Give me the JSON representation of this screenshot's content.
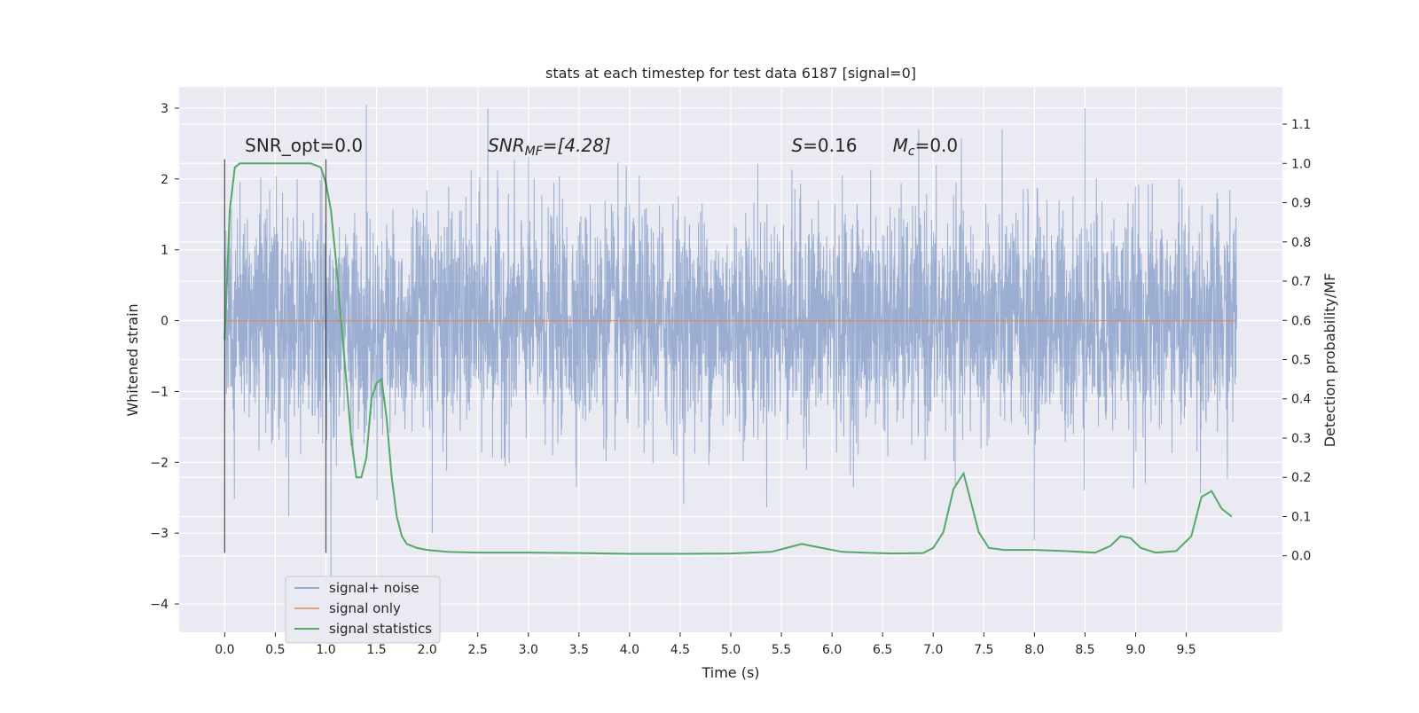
{
  "chart_data": {
    "type": "line",
    "title": "stats at each timestep for test data 6187 [signal=0]",
    "xlabel": "Time (s)",
    "ylabel": "Whitened strain",
    "y2label": "Detection probability/MF",
    "xlim": [
      -0.45,
      10.45
    ],
    "ylim": [
      -4.4,
      3.3
    ],
    "y2lim": [
      -0.195,
      1.195
    ],
    "xticks": [
      0.0,
      0.5,
      1.0,
      1.5,
      2.0,
      2.5,
      3.0,
      3.5,
      4.0,
      4.5,
      5.0,
      5.5,
      6.0,
      6.5,
      7.0,
      7.5,
      8.0,
      8.5,
      9.0,
      9.5
    ],
    "xtick_labels": [
      "0.0",
      "0.5",
      "1.0",
      "1.5",
      "2.0",
      "2.5",
      "3.0",
      "3.5",
      "4.0",
      "4.5",
      "5.0",
      "5.5",
      "6.0",
      "6.5",
      "7.0",
      "7.5",
      "8.0",
      "8.5",
      "9.0",
      "9.5"
    ],
    "yticks": [
      -4,
      -3,
      -2,
      -1,
      0,
      1,
      2,
      3
    ],
    "ytick_labels": [
      "−4",
      "−3",
      "−2",
      "−1",
      "0",
      "1",
      "2",
      "3"
    ],
    "y2ticks": [
      0.0,
      0.1,
      0.2,
      0.3,
      0.4,
      0.5,
      0.6,
      0.7,
      0.8,
      0.9,
      1.0,
      1.1
    ],
    "y2tick_labels": [
      "0.0",
      "0.1",
      "0.2",
      "0.3",
      "0.4",
      "0.5",
      "0.6",
      "0.7",
      "0.8",
      "0.9",
      "1.0",
      "1.1"
    ],
    "grid": true,
    "legend_position": "lower-left",
    "annotations": [
      {
        "text": "SNR_opt=0.0",
        "x": 0.2,
        "y": 2.35
      },
      {
        "text": "SNR",
        "sub": "MF",
        "suffix": "=[4.28]",
        "x": 2.6,
        "y": 2.35
      },
      {
        "text": "S",
        "suffix": "=0.16",
        "x": 5.6,
        "y": 2.35
      },
      {
        "text": "M",
        "sub": "c",
        "suffix": "=0.0",
        "x": 6.6,
        "y": 2.35
      }
    ],
    "vlines": [
      {
        "x": 0.0,
        "ymin": -3.28,
        "ymax": 2.28
      },
      {
        "x": 1.0,
        "ymin": -3.28,
        "ymax": 2.28
      }
    ],
    "series": [
      {
        "name": "signal+ noise",
        "color": "#4c72b0",
        "axis": "left",
        "x_range": [
          0.0,
          9.999
        ],
        "n_points": 4096,
        "envelope_description": "whitened gaussian noise, roughly ±1.2 sigma band with peaks reaching about +3.05 and -3.6",
        "notable_peaks": [
          {
            "x": 1.4,
            "y": 3.05
          },
          {
            "x": 2.6,
            "y": 3.0
          },
          {
            "x": 8.5,
            "y": 3.0
          },
          {
            "x": 1.05,
            "y": -3.6
          },
          {
            "x": 2.05,
            "y": -3.0
          },
          {
            "x": 8.0,
            "y": -3.1
          }
        ]
      },
      {
        "name": "signal only",
        "color": "#dd8452",
        "axis": "left",
        "x": [
          0.0,
          9.999
        ],
        "values": [
          0.0,
          0.0
        ]
      },
      {
        "name": "signal statistics",
        "color": "#55a868",
        "axis": "right",
        "x": [
          0.0,
          0.05,
          0.1,
          0.15,
          0.2,
          0.3,
          0.5,
          0.7,
          0.85,
          0.95,
          1.0,
          1.05,
          1.1,
          1.15,
          1.2,
          1.25,
          1.3,
          1.35,
          1.4,
          1.45,
          1.5,
          1.55,
          1.6,
          1.65,
          1.7,
          1.75,
          1.8,
          1.9,
          2.0,
          2.2,
          2.5,
          3.0,
          3.5,
          4.0,
          4.5,
          5.0,
          5.4,
          5.55,
          5.7,
          5.8,
          5.9,
          6.1,
          6.3,
          6.6,
          6.9,
          7.0,
          7.1,
          7.2,
          7.3,
          7.35,
          7.45,
          7.55,
          7.7,
          8.0,
          8.3,
          8.6,
          8.75,
          8.85,
          8.95,
          9.05,
          9.2,
          9.4,
          9.55,
          9.65,
          9.75,
          9.85,
          9.95
        ],
        "values": [
          0.55,
          0.88,
          0.99,
          1.0,
          1.0,
          1.0,
          1.0,
          1.0,
          1.0,
          0.99,
          0.95,
          0.88,
          0.75,
          0.6,
          0.45,
          0.3,
          0.2,
          0.2,
          0.25,
          0.4,
          0.44,
          0.45,
          0.35,
          0.2,
          0.1,
          0.05,
          0.03,
          0.02,
          0.015,
          0.01,
          0.008,
          0.008,
          0.007,
          0.005,
          0.005,
          0.006,
          0.01,
          0.02,
          0.03,
          0.025,
          0.02,
          0.01,
          0.008,
          0.006,
          0.007,
          0.02,
          0.06,
          0.17,
          0.21,
          0.16,
          0.06,
          0.02,
          0.015,
          0.015,
          0.012,
          0.008,
          0.025,
          0.05,
          0.045,
          0.02,
          0.008,
          0.012,
          0.05,
          0.15,
          0.165,
          0.12,
          0.1
        ]
      }
    ]
  }
}
